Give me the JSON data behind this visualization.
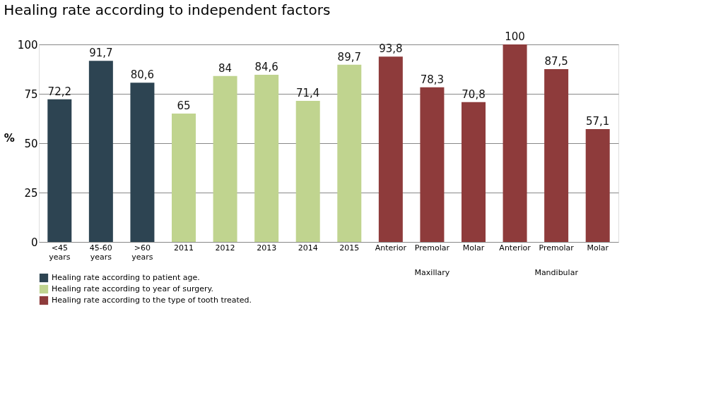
{
  "chart_data": {
    "type": "bar",
    "title": "Healing rate according to independent factors",
    "ylabel": "%",
    "categories": [
      "<45 years",
      "45-60 years",
      ">60 years",
      "2011",
      "2012",
      "2013",
      "2014",
      "2015",
      "Anterior",
      "Premolar",
      "Molar",
      "Anterior",
      "Premolar",
      "Molar"
    ],
    "series": [
      {
        "name": "Healing rate according to patient age.",
        "color": "#2d4452",
        "values": [
          72.2,
          91.7,
          80.6,
          null,
          null,
          null,
          null,
          null,
          null,
          null,
          null,
          null,
          null,
          null
        ],
        "value_labels": [
          "72,2",
          "91,7",
          "80,6",
          null,
          null,
          null,
          null,
          null,
          null,
          null,
          null,
          null,
          null,
          null
        ]
      },
      {
        "name": "Healing rate according to year of surgery.",
        "color": "#c0d48f",
        "values": [
          null,
          null,
          null,
          65,
          84,
          84.6,
          71.4,
          89.7,
          null,
          null,
          null,
          null,
          null,
          null
        ],
        "value_labels": [
          null,
          null,
          null,
          "65",
          "84",
          "84,6",
          "71,4",
          "89,7",
          null,
          null,
          null,
          null,
          null,
          null
        ]
      },
      {
        "name": "Healing rate according to the type of tooth treated.",
        "color": "#8e3b3b",
        "values": [
          null,
          null,
          null,
          null,
          null,
          null,
          null,
          null,
          93.8,
          78.3,
          70.8,
          100,
          87.5,
          57.1
        ],
        "value_labels": [
          null,
          null,
          null,
          null,
          null,
          null,
          null,
          null,
          "93,8",
          "78,3",
          "70,8",
          "100",
          "87,5",
          "57,1"
        ]
      }
    ],
    "annotations": [
      "Maxillary",
      "Mandibular"
    ],
    "ylim": [
      0,
      100
    ],
    "yticks": [
      0,
      25,
      50,
      75,
      100
    ],
    "grid": "y",
    "legend": "bottom"
  }
}
